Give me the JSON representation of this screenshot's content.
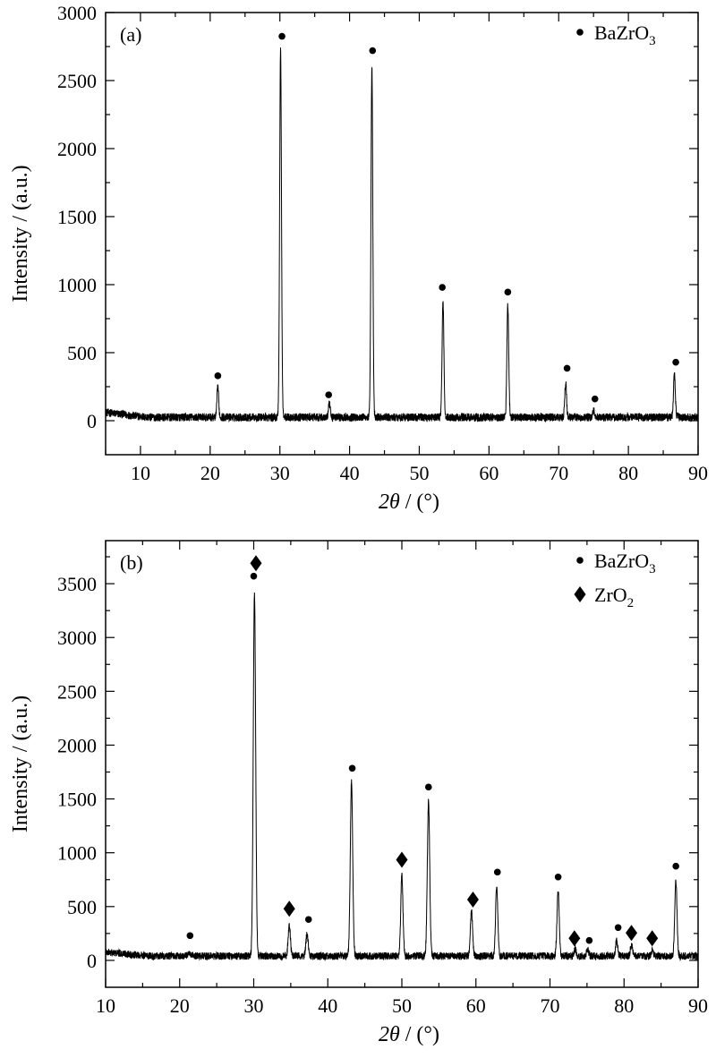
{
  "chart_data": [
    {
      "id": "a",
      "type": "line",
      "panel_label": "(a)",
      "xlabel_italic": "2θ",
      "xlabel_unit": " / (°)",
      "ylabel": "Intensity / (a.u.)",
      "xlim": [
        5,
        90
      ],
      "ylim": [
        -250,
        3000
      ],
      "xticks": [
        10,
        20,
        30,
        40,
        50,
        60,
        70,
        80,
        90
      ],
      "yticks": [
        0,
        500,
        1000,
        1500,
        2000,
        2500,
        3000
      ],
      "baseline": 25,
      "noise": 30,
      "legend": [
        {
          "marker": "circle",
          "text": "BaZrO",
          "sub": "3"
        }
      ],
      "peaks": [
        {
          "x": 21.1,
          "h": 230,
          "w": 0.12
        },
        {
          "x": 30.1,
          "h": 2710,
          "w": 0.13
        },
        {
          "x": 37.1,
          "h": 100,
          "w": 0.12
        },
        {
          "x": 43.2,
          "h": 2580,
          "w": 0.13
        },
        {
          "x": 53.4,
          "h": 840,
          "w": 0.13
        },
        {
          "x": 62.7,
          "h": 830,
          "w": 0.13
        },
        {
          "x": 71.0,
          "h": 250,
          "w": 0.13
        },
        {
          "x": 75.0,
          "h": 50,
          "w": 0.12
        },
        {
          "x": 86.6,
          "h": 320,
          "w": 0.13
        }
      ],
      "markers": [
        {
          "x": 21.1,
          "y": 330,
          "type": "circle"
        },
        {
          "x": 30.3,
          "y": 2825,
          "type": "circle"
        },
        {
          "x": 37.0,
          "y": 190,
          "type": "circle"
        },
        {
          "x": 43.3,
          "y": 2720,
          "type": "circle"
        },
        {
          "x": 53.3,
          "y": 980,
          "type": "circle"
        },
        {
          "x": 62.7,
          "y": 945,
          "type": "circle"
        },
        {
          "x": 71.2,
          "y": 385,
          "type": "circle"
        },
        {
          "x": 75.2,
          "y": 160,
          "type": "circle"
        },
        {
          "x": 86.8,
          "y": 430,
          "type": "circle"
        }
      ]
    },
    {
      "id": "b",
      "type": "line",
      "panel_label": "(b)",
      "xlabel_italic": "2θ",
      "xlabel_unit": " / (°)",
      "ylabel": "Intensity / (a.u.)",
      "xlim": [
        10,
        90
      ],
      "ylim": [
        -250,
        3900
      ],
      "xticks": [
        10,
        20,
        30,
        40,
        50,
        60,
        70,
        80,
        90
      ],
      "yticks": [
        0,
        500,
        1000,
        1500,
        2000,
        2500,
        3000,
        3500
      ],
      "baseline": 40,
      "noise": 35,
      "legend": [
        {
          "marker": "circle",
          "text": "BaZrO",
          "sub": "3"
        },
        {
          "marker": "diamond",
          "text": "ZrO",
          "sub": "2"
        }
      ],
      "peaks": [
        {
          "x": 21.2,
          "h": 25,
          "w": 0.15
        },
        {
          "x": 30.1,
          "h": 3380,
          "w": 0.16
        },
        {
          "x": 34.8,
          "h": 280,
          "w": 0.15
        },
        {
          "x": 37.2,
          "h": 210,
          "w": 0.15
        },
        {
          "x": 43.2,
          "h": 1620,
          "w": 0.16
        },
        {
          "x": 50.0,
          "h": 760,
          "w": 0.15
        },
        {
          "x": 53.6,
          "h": 1440,
          "w": 0.16
        },
        {
          "x": 59.4,
          "h": 420,
          "w": 0.15
        },
        {
          "x": 62.8,
          "h": 640,
          "w": 0.15
        },
        {
          "x": 71.1,
          "h": 620,
          "w": 0.15
        },
        {
          "x": 73.4,
          "h": 70,
          "w": 0.14
        },
        {
          "x": 75.1,
          "h": 60,
          "w": 0.14
        },
        {
          "x": 79.0,
          "h": 150,
          "w": 0.14
        },
        {
          "x": 81.0,
          "h": 100,
          "w": 0.14
        },
        {
          "x": 83.8,
          "h": 60,
          "w": 0.14
        },
        {
          "x": 87.0,
          "h": 700,
          "w": 0.15
        }
      ],
      "markers": [
        {
          "x": 30.3,
          "y": 3690,
          "type": "diamond"
        },
        {
          "x": 30.0,
          "y": 3570,
          "type": "circle"
        },
        {
          "x": 21.4,
          "y": 230,
          "type": "circle"
        },
        {
          "x": 34.8,
          "y": 480,
          "type": "diamond"
        },
        {
          "x": 37.4,
          "y": 380,
          "type": "circle"
        },
        {
          "x": 43.3,
          "y": 1785,
          "type": "circle"
        },
        {
          "x": 50.0,
          "y": 935,
          "type": "diamond"
        },
        {
          "x": 53.6,
          "y": 1610,
          "type": "circle"
        },
        {
          "x": 59.6,
          "y": 565,
          "type": "diamond"
        },
        {
          "x": 62.9,
          "y": 820,
          "type": "circle"
        },
        {
          "x": 71.1,
          "y": 775,
          "type": "circle"
        },
        {
          "x": 73.3,
          "y": 205,
          "type": "diamond"
        },
        {
          "x": 75.3,
          "y": 185,
          "type": "circle"
        },
        {
          "x": 79.2,
          "y": 305,
          "type": "circle"
        },
        {
          "x": 81.0,
          "y": 255,
          "type": "diamond"
        },
        {
          "x": 83.8,
          "y": 205,
          "type": "diamond"
        },
        {
          "x": 87.0,
          "y": 875,
          "type": "circle"
        }
      ]
    }
  ]
}
